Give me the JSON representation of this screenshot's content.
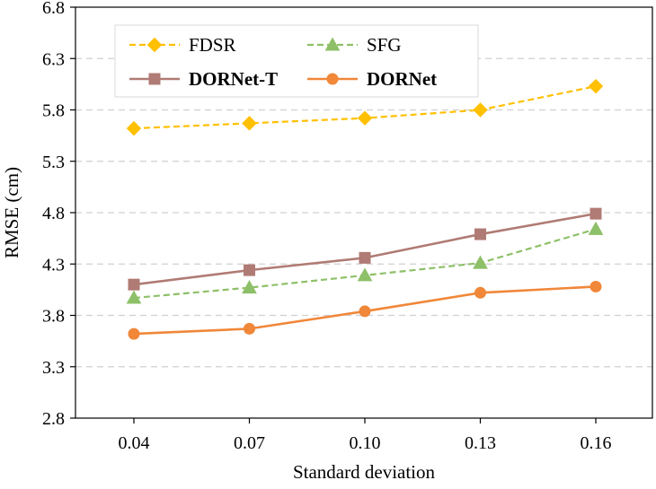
{
  "chart_data": {
    "type": "line",
    "title": "",
    "xlabel": "Standard deviation",
    "ylabel": "RMSE (cm)",
    "categories": [
      "0.04",
      "0.07",
      "0.10",
      "0.13",
      "0.16"
    ],
    "ylim": [
      2.8,
      6.8
    ],
    "yticks": [
      "2.8",
      "3.3",
      "3.8",
      "4.3",
      "4.8",
      "5.3",
      "5.8",
      "6.3",
      "6.8"
    ],
    "grid": "horizontal dashed",
    "legend_position": "top-left",
    "series": [
      {
        "name": "FDSR",
        "values": [
          5.62,
          5.67,
          5.72,
          5.8,
          6.03
        ],
        "color": "#ffc000",
        "marker": "diamond",
        "line_style": "dashed",
        "bold": false
      },
      {
        "name": "SFG",
        "values": [
          3.97,
          4.07,
          4.19,
          4.31,
          4.64
        ],
        "color": "#8dc068",
        "marker": "triangle",
        "line_style": "dashed",
        "bold": false
      },
      {
        "name": "DORNet-T",
        "values": [
          4.1,
          4.24,
          4.36,
          4.59,
          4.79
        ],
        "color": "#b07b74",
        "marker": "square",
        "line_style": "solid",
        "bold": true
      },
      {
        "name": "DORNet",
        "values": [
          3.62,
          3.67,
          3.84,
          4.02,
          4.08
        ],
        "color": "#f08739",
        "marker": "circle",
        "line_style": "solid",
        "bold": true
      }
    ]
  }
}
